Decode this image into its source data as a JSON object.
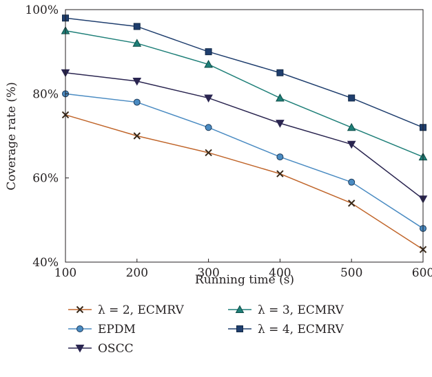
{
  "chart_data": {
    "type": "line",
    "xlabel": "Running time (s)",
    "ylabel": "Coverage rate (%)",
    "xlim": [
      100,
      600
    ],
    "ylim": [
      40,
      100
    ],
    "x_ticks": [
      100,
      200,
      300,
      400,
      500,
      600
    ],
    "x_tick_labels": [
      "100",
      "200",
      "300",
      "400",
      "500",
      "600"
    ],
    "y_ticks": [
      40,
      60,
      80,
      100
    ],
    "y_tick_labels": [
      "40%",
      "60%",
      "80%",
      "100%"
    ],
    "grid": false,
    "legend_position": "bottom",
    "x": [
      100,
      200,
      300,
      400,
      500,
      600
    ],
    "series": [
      {
        "name": "λ = 2, ECMRV",
        "values": [
          75,
          70,
          66,
          61,
          54,
          43
        ],
        "color": "#c0652a",
        "marker": "x"
      },
      {
        "name": "EPDM",
        "values": [
          80,
          78,
          72,
          65,
          59,
          48
        ],
        "color": "#4a8bc2",
        "marker": "circle"
      },
      {
        "name": "OSCC",
        "values": [
          85,
          83,
          79,
          73,
          68,
          55
        ],
        "color": "#2a2550",
        "marker": "triangle-down"
      },
      {
        "name": "λ = 3, ECMRV",
        "values": [
          95,
          92,
          87,
          79,
          72,
          65
        ],
        "color": "#1e7f78",
        "marker": "triangle-up"
      },
      {
        "name": "λ = 4, ECMRV",
        "values": [
          98,
          96,
          90,
          85,
          79,
          72
        ],
        "color": "#1f3e6e",
        "marker": "square"
      }
    ]
  }
}
